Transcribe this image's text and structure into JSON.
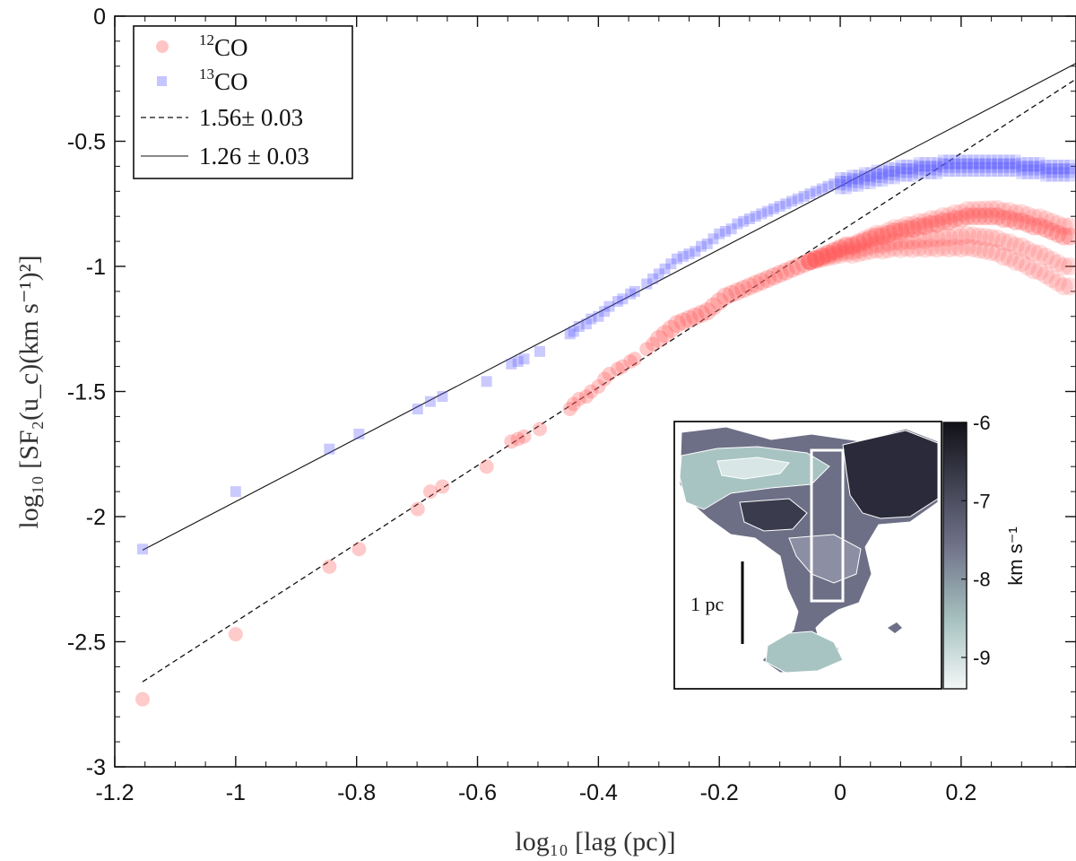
{
  "chart_data": {
    "type": "scatter",
    "title": "",
    "xlabel": "log₁₀ [lag (pc)]",
    "ylabel": "log₁₀ [SF₂(u_c)(km s⁻¹)²]",
    "xlim": [
      -1.2,
      0.39
    ],
    "ylim": [
      -3,
      0
    ],
    "x_ticks": [
      "-1.2",
      "-1",
      "-0.8",
      "-0.6",
      "-0.4",
      "-0.2",
      "0",
      "0.2"
    ],
    "y_ticks": [
      "0",
      "-0.5",
      "-1",
      "-1.5",
      "-2",
      "-2.5",
      "-3"
    ],
    "grid": false,
    "legend_position": "top-left",
    "series": [
      {
        "name": "¹²CO",
        "color": "#ff5a5a",
        "marker": "circle",
        "x": [
          -1.154,
          -1.0,
          -0.845,
          -0.796,
          -0.699,
          -0.678,
          -0.658,
          -0.585,
          -0.544,
          -0.533,
          -0.523,
          -0.497,
          -0.447,
          -0.441,
          -0.432,
          -0.42,
          -0.412,
          -0.4,
          -0.39,
          -0.382,
          -0.368,
          -0.36,
          -0.347,
          -0.34,
          -0.32,
          -0.31,
          -0.3,
          -0.29,
          -0.28,
          -0.27,
          -0.26,
          -0.25,
          -0.24,
          -0.23,
          -0.22,
          -0.21,
          -0.2,
          -0.19,
          -0.18,
          -0.17,
          -0.16,
          -0.15,
          -0.14,
          -0.13,
          -0.12,
          -0.11,
          -0.1,
          -0.09,
          -0.08,
          -0.07,
          -0.06,
          -0.05,
          -0.04,
          -0.03,
          -0.02,
          -0.01,
          0.0,
          0.01,
          0.02,
          0.03,
          0.04,
          0.05,
          0.06,
          0.07,
          0.08,
          0.09,
          0.1,
          0.11,
          0.12,
          0.13,
          0.14,
          0.15,
          0.16,
          0.17,
          0.18,
          0.19,
          0.2,
          0.21,
          0.22,
          0.23,
          0.24,
          0.25,
          0.26,
          0.27,
          0.28,
          0.29,
          0.3,
          0.31,
          0.32,
          0.33,
          0.34,
          0.35,
          0.36,
          0.37,
          0.38
        ],
        "y": [
          -2.73,
          -2.47,
          -2.2,
          -2.13,
          -1.97,
          -1.9,
          -1.88,
          -1.8,
          -1.7,
          -1.69,
          -1.68,
          -1.65,
          -1.57,
          -1.55,
          -1.53,
          -1.52,
          -1.5,
          -1.48,
          -1.45,
          -1.43,
          -1.41,
          -1.4,
          -1.38,
          -1.37,
          -1.33,
          -1.31,
          -1.29,
          -1.27,
          -1.25,
          -1.23,
          -1.22,
          -1.21,
          -1.2,
          -1.19,
          -1.18,
          -1.16,
          -1.14,
          -1.12,
          -1.11,
          -1.1,
          -1.09,
          -1.08,
          -1.07,
          -1.06,
          -1.05,
          -1.04,
          -1.03,
          -1.02,
          -1.01,
          -1.0,
          -0.99,
          -0.98,
          -0.97,
          -0.96,
          -0.95,
          -0.94,
          -0.93,
          -0.92,
          -0.92,
          -0.91,
          -0.9,
          -0.89,
          -0.88,
          -0.88,
          -0.87,
          -0.86,
          -0.86,
          -0.85,
          -0.85,
          -0.84,
          -0.84,
          -0.83,
          -0.83,
          -0.82,
          -0.82,
          -0.81,
          -0.81,
          -0.8,
          -0.8,
          -0.8,
          -0.8,
          -0.8,
          -0.8,
          -0.81,
          -0.81,
          -0.82,
          -0.82,
          -0.83,
          -0.84,
          -0.84,
          -0.85,
          -0.86,
          -0.87,
          -0.88,
          -0.88
        ]
      },
      {
        "name": "¹³CO",
        "color": "#5a5aff",
        "marker": "square",
        "x": [
          -1.154,
          -1.0,
          -0.845,
          -0.796,
          -0.699,
          -0.678,
          -0.658,
          -0.585,
          -0.544,
          -0.533,
          -0.523,
          -0.497,
          -0.447,
          -0.441,
          -0.432,
          -0.42,
          -0.412,
          -0.4,
          -0.39,
          -0.382,
          -0.368,
          -0.36,
          -0.347,
          -0.34,
          -0.32,
          -0.31,
          -0.3,
          -0.29,
          -0.28,
          -0.27,
          -0.26,
          -0.25,
          -0.24,
          -0.23,
          -0.22,
          -0.21,
          -0.2,
          -0.19,
          -0.18,
          -0.17,
          -0.16,
          -0.15,
          -0.14,
          -0.13,
          -0.12,
          -0.11,
          -0.1,
          -0.09,
          -0.08,
          -0.07,
          -0.06,
          -0.05,
          -0.04,
          -0.03,
          -0.02,
          -0.01,
          0.0,
          0.01,
          0.02,
          0.03,
          0.04,
          0.05,
          0.06,
          0.07,
          0.08,
          0.09,
          0.1,
          0.11,
          0.12,
          0.13,
          0.14,
          0.15,
          0.16,
          0.17,
          0.18,
          0.19,
          0.2,
          0.21,
          0.22,
          0.23,
          0.24,
          0.25,
          0.26,
          0.27,
          0.28,
          0.29,
          0.3,
          0.31,
          0.32,
          0.33,
          0.34,
          0.35,
          0.36,
          0.37,
          0.38
        ],
        "y": [
          -2.13,
          -1.9,
          -1.73,
          -1.67,
          -1.57,
          -1.54,
          -1.52,
          -1.46,
          -1.39,
          -1.38,
          -1.37,
          -1.34,
          -1.27,
          -1.26,
          -1.24,
          -1.23,
          -1.21,
          -1.2,
          -1.18,
          -1.16,
          -1.14,
          -1.13,
          -1.11,
          -1.1,
          -1.07,
          -1.05,
          -1.03,
          -1.01,
          -0.99,
          -0.97,
          -0.96,
          -0.95,
          -0.94,
          -0.92,
          -0.91,
          -0.89,
          -0.87,
          -0.86,
          -0.85,
          -0.83,
          -0.82,
          -0.81,
          -0.8,
          -0.79,
          -0.78,
          -0.77,
          -0.76,
          -0.75,
          -0.74,
          -0.73,
          -0.72,
          -0.71,
          -0.7,
          -0.69,
          -0.68,
          -0.67,
          -0.66,
          -0.66,
          -0.65,
          -0.65,
          -0.64,
          -0.64,
          -0.63,
          -0.63,
          -0.62,
          -0.62,
          -0.61,
          -0.61,
          -0.61,
          -0.6,
          -0.6,
          -0.6,
          -0.6,
          -0.59,
          -0.59,
          -0.59,
          -0.59,
          -0.59,
          -0.59,
          -0.59,
          -0.59,
          -0.59,
          -0.59,
          -0.59,
          -0.59,
          -0.59,
          -0.6,
          -0.6,
          -0.6,
          -0.6,
          -0.61,
          -0.61,
          -0.61,
          -0.61,
          -0.61
        ]
      }
    ],
    "fits": [
      {
        "name": "1.56± 0.03",
        "style": "dashed",
        "slope": 1.56,
        "intercept": -0.86,
        "x_range": [
          -1.154,
          0.39
        ]
      },
      {
        "name": "1.26 ± 0.03",
        "style": "solid",
        "slope": 1.26,
        "intercept": -0.68,
        "x_range": [
          -1.154,
          0.39
        ]
      }
    ]
  },
  "legend": {
    "items": [
      {
        "sup": "12",
        "label": "CO",
        "kind": "circle",
        "color": "#ff5a5a"
      },
      {
        "sup": "13",
        "label": "CO",
        "kind": "square",
        "color": "#5a5aff"
      },
      {
        "label": "1.56± 0.03",
        "kind": "dashed"
      },
      {
        "label": "1.26 ± 0.03",
        "kind": "solid"
      }
    ]
  },
  "inset": {
    "scale_label": "1 pc",
    "colorbar_unit": "km s⁻¹",
    "colorbar_ticks": [
      "-6",
      "-7",
      "-8",
      "-9"
    ],
    "colorbar_range": [
      -9.4,
      -6
    ],
    "colors": {
      "dark": "#1f1f2b",
      "mid": "#6d6f86",
      "light": "#a8c4c2",
      "pale": "#f4f7f7"
    }
  }
}
